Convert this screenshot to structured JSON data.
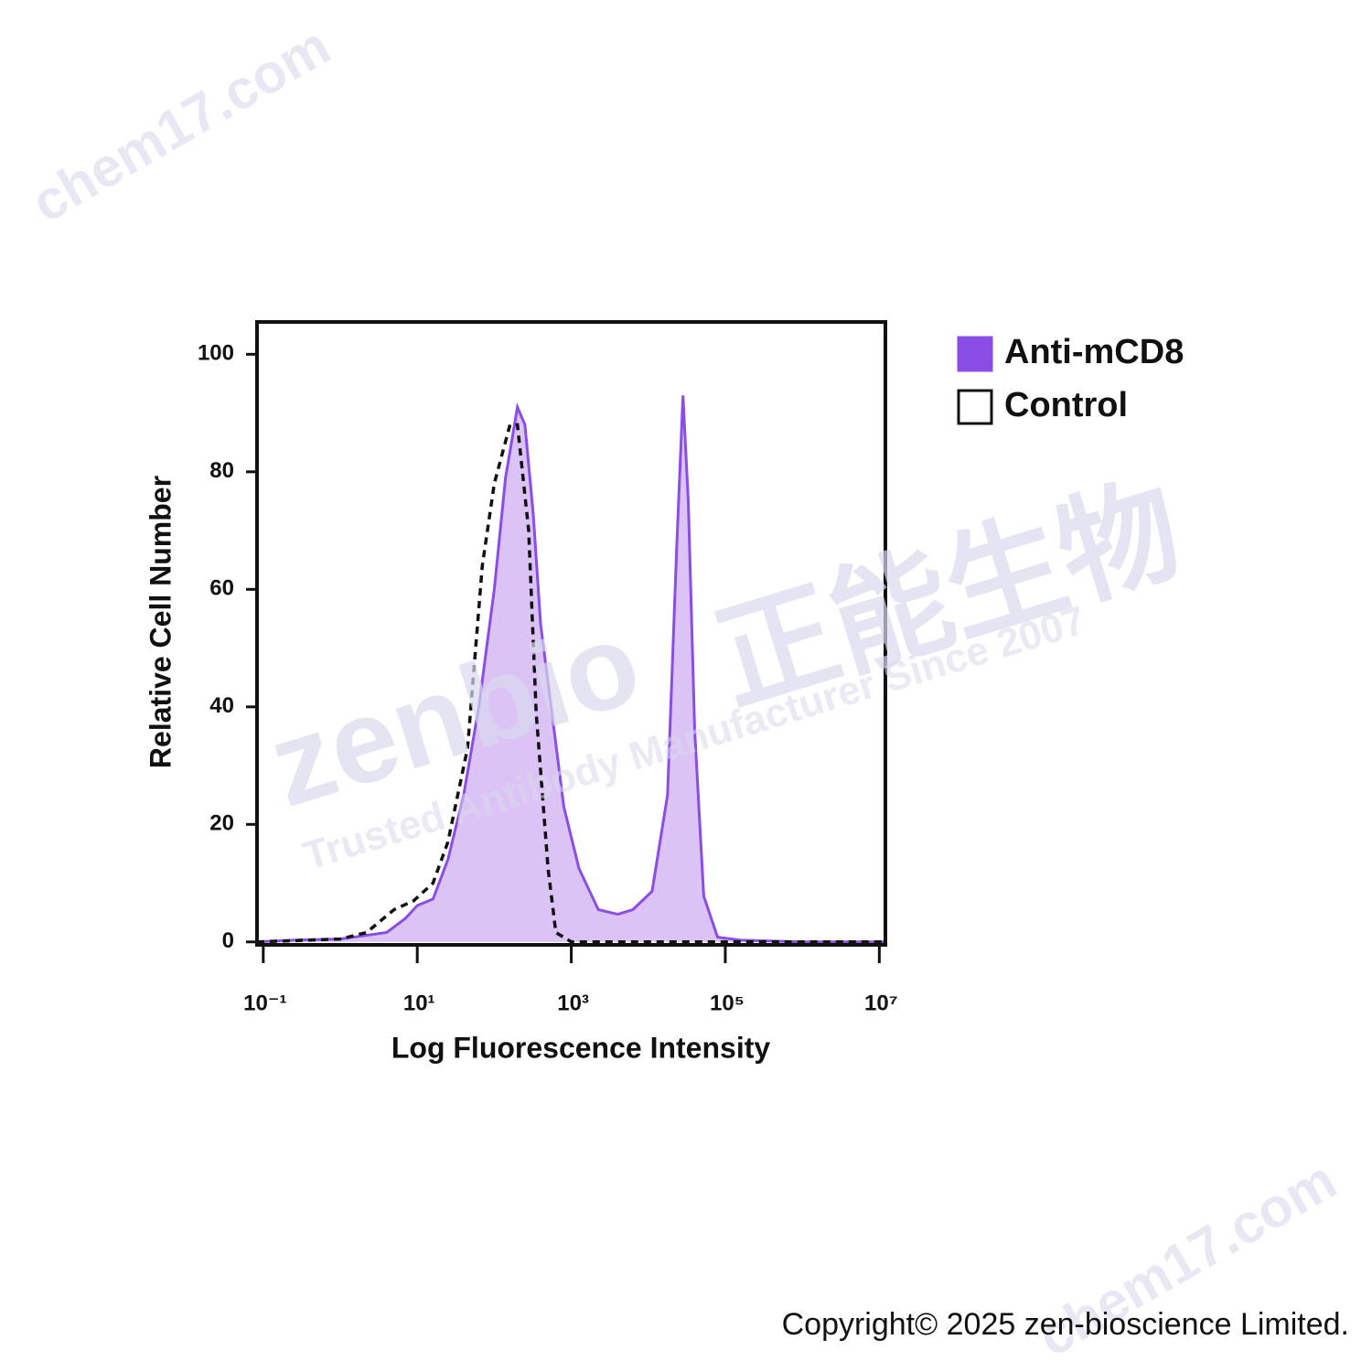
{
  "chart_data": {
    "type": "area",
    "ylabel": "Relative Cell Number",
    "xlabel": "Log Fluorescence Intensity",
    "xscale": "log",
    "xlim": [
      0.083,
      12000000
    ],
    "xticks": [
      {
        "value": 0.1,
        "label": "10⁻¹"
      },
      {
        "value": 10,
        "label": "10¹"
      },
      {
        "value": 1000,
        "label": "10³"
      },
      {
        "value": 100000,
        "label": "10⁵"
      },
      {
        "value": 10000000,
        "label": "10⁷"
      }
    ],
    "ylim": [
      -0.5,
      105.5
    ],
    "yticks": [
      0,
      20,
      40,
      60,
      80,
      100
    ],
    "legend": "right",
    "series": [
      {
        "name": "Anti-mCD8",
        "color": "#8a4de6",
        "fill": "#dcc3f6",
        "style": "filled",
        "x": [
          0.083,
          0.25,
          1,
          4,
          7,
          10,
          16,
          25,
          40,
          63,
          100,
          140,
          200,
          250,
          320,
          400,
          560,
          800,
          1260,
          2240,
          4000,
          6300,
          11200,
          17800,
          23400,
          28200,
          33100,
          40000,
          52500,
          79400,
          158000,
          1000000,
          12000000
        ],
        "values": [
          0,
          0.3,
          0.5,
          1.6,
          4,
          6.2,
          7.3,
          14,
          25,
          40,
          60,
          79,
          91,
          88,
          73,
          54,
          39,
          23,
          12.5,
          5.5,
          4.7,
          5.5,
          8.6,
          25,
          67,
          93,
          75,
          36,
          7.8,
          0.8,
          0.3,
          0,
          0
        ]
      },
      {
        "name": "Control",
        "color": "#111111",
        "style": "dashed",
        "x": [
          0.083,
          1,
          2.2,
          5,
          9,
          16,
          25,
          45,
          70,
          100,
          160,
          200,
          280,
          350,
          500,
          630,
          1000,
          12000000
        ],
        "values": [
          0,
          0.5,
          1.6,
          5.5,
          7,
          10,
          17,
          33,
          64,
          78,
          88,
          88,
          70,
          39,
          12.5,
          1.6,
          0,
          0
        ]
      }
    ]
  },
  "watermarks": {
    "brand": "zenbio",
    "brand_cn": "正能生物",
    "tagline": "Trusted Antibody Manufacturer Since 2007",
    "site": "chem17.com"
  },
  "footer": {
    "copyright": "Copyright© 2025 zen-bioscience Limited."
  }
}
